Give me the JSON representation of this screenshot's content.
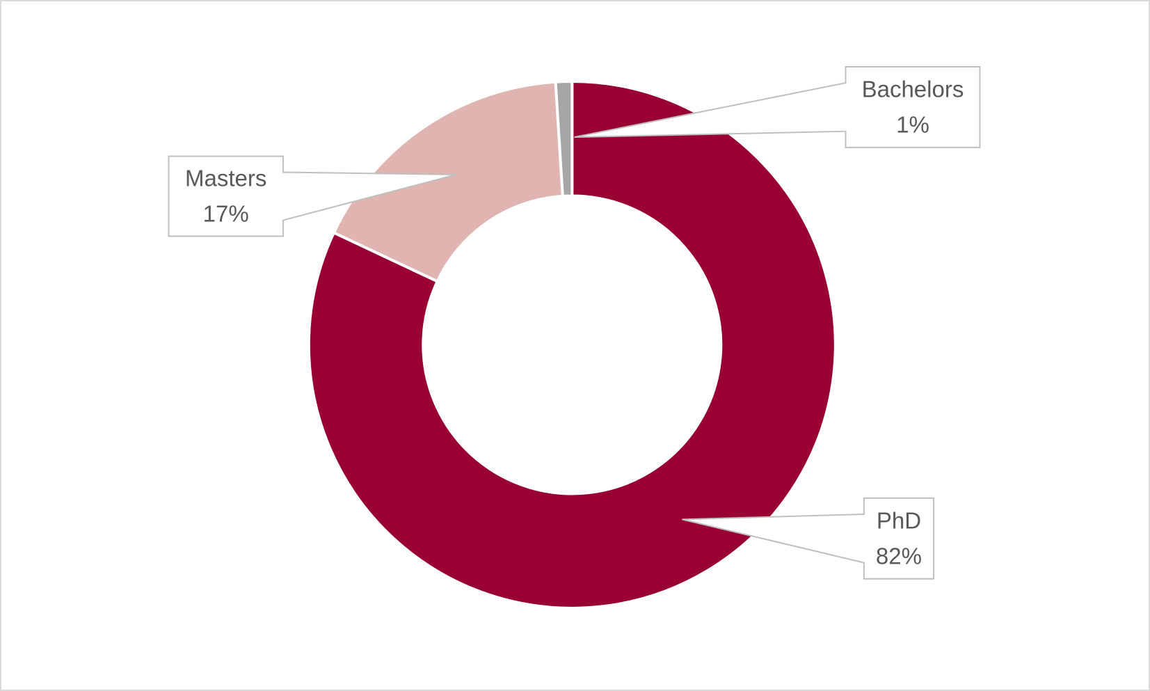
{
  "chart_data": {
    "type": "donut",
    "categories": [
      "PhD",
      "Masters",
      "Bachelors"
    ],
    "values": [
      82,
      17,
      1
    ],
    "value_labels": [
      "82%",
      "17%",
      "1%"
    ],
    "colors": [
      "#990033",
      "#e0b4b0",
      "#a6a6a6"
    ]
  }
}
